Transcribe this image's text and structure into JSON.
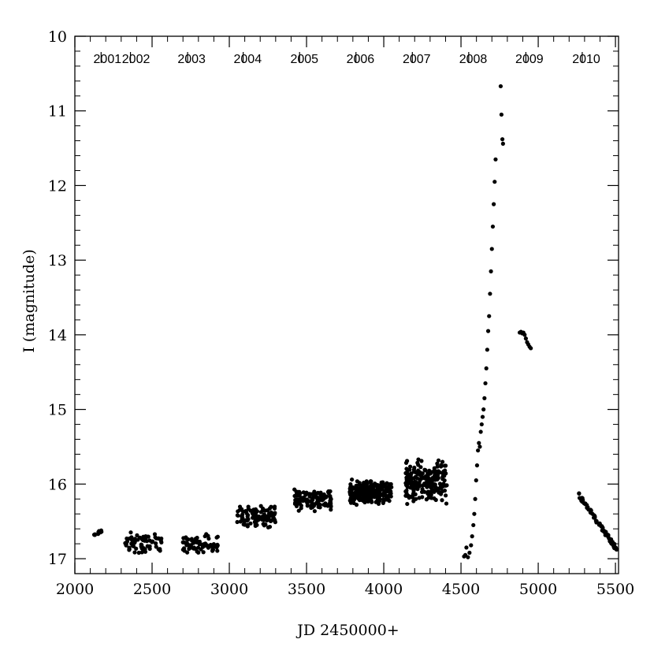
{
  "chart_data": {
    "type": "scatter",
    "title": "",
    "xlabel": "JD 2450000+",
    "ylabel": "I (magnitude)",
    "xlim": [
      2000,
      5520
    ],
    "ylim": [
      17.2,
      10
    ],
    "y_inverted": true,
    "grid": false,
    "x_ticks": [
      2000,
      2500,
      3000,
      3500,
      4000,
      4500,
      5000,
      5500
    ],
    "y_ticks": [
      10,
      11,
      12,
      13,
      14,
      15,
      16,
      17
    ],
    "x_tick_labels": [
      "2000",
      "2500",
      "3000",
      "3500",
      "4000",
      "4500",
      "5000",
      "5500"
    ],
    "y_tick_labels": [
      "10",
      "11",
      "12",
      "13",
      "14",
      "15",
      "16",
      "17"
    ],
    "year_markers": {
      "labels": [
        "2001",
        "2002",
        "2003",
        "2004",
        "2005",
        "2006",
        "2007",
        "2008",
        "2009",
        "2010"
      ],
      "label_x": [
        2120,
        2305,
        2665,
        3028,
        3395,
        3758,
        4122,
        4488,
        4852,
        5220
      ],
      "divider_x": [
        2170,
        2360,
        2730,
        3090,
        3455,
        3820,
        4185,
        4550,
        4920,
        5285
      ]
    },
    "seasons": [
      {
        "year": "2001",
        "x_range": [
          2115,
          2200
        ],
        "I_range": [
          16.56,
          16.76
        ]
      },
      {
        "year": "2002",
        "x_range": [
          2320,
          2570
        ],
        "I_range": [
          16.6,
          17.0
        ]
      },
      {
        "year": "2003",
        "x_range": [
          2700,
          2930
        ],
        "I_range": [
          16.63,
          17.0
        ]
      },
      {
        "year": "2004",
        "x_range": [
          3050,
          3300
        ],
        "I_range": [
          16.22,
          16.67
        ]
      },
      {
        "year": "2005",
        "x_range": [
          3420,
          3660
        ],
        "I_range": [
          16.0,
          16.45
        ]
      },
      {
        "year": "2006",
        "x_range": [
          3780,
          4050
        ],
        "I_range": [
          15.87,
          16.35
        ]
      },
      {
        "year": "2007",
        "x_range": [
          4140,
          4410
        ],
        "I_range": [
          15.55,
          16.37
        ]
      },
      {
        "year": "2010",
        "x_range": [
          5260,
          5510
        ],
        "I_range": [
          16.14,
          16.88
        ]
      }
    ],
    "rise_points": [
      {
        "x": 4520,
        "y": 16.97
      },
      {
        "x": 4528,
        "y": 16.95
      },
      {
        "x": 4535,
        "y": 16.85
      },
      {
        "x": 4545,
        "y": 16.98
      },
      {
        "x": 4555,
        "y": 16.92
      },
      {
        "x": 4565,
        "y": 16.82
      },
      {
        "x": 4572,
        "y": 16.7
      },
      {
        "x": 4580,
        "y": 16.55
      },
      {
        "x": 4586,
        "y": 16.4
      },
      {
        "x": 4592,
        "y": 16.2
      },
      {
        "x": 4598,
        "y": 15.95
      },
      {
        "x": 4604,
        "y": 15.75
      },
      {
        "x": 4610,
        "y": 15.55
      },
      {
        "x": 4616,
        "y": 15.45
      },
      {
        "x": 4622,
        "y": 15.5
      },
      {
        "x": 4628,
        "y": 15.3
      },
      {
        "x": 4634,
        "y": 15.2
      },
      {
        "x": 4640,
        "y": 15.1
      },
      {
        "x": 4646,
        "y": 15.0
      },
      {
        "x": 4652,
        "y": 14.85
      },
      {
        "x": 4658,
        "y": 14.65
      },
      {
        "x": 4664,
        "y": 14.45
      },
      {
        "x": 4670,
        "y": 14.2
      },
      {
        "x": 4676,
        "y": 13.95
      },
      {
        "x": 4682,
        "y": 13.75
      },
      {
        "x": 4688,
        "y": 13.45
      },
      {
        "x": 4694,
        "y": 13.15
      },
      {
        "x": 4700,
        "y": 12.85
      },
      {
        "x": 4706,
        "y": 12.55
      },
      {
        "x": 4712,
        "y": 12.25
      },
      {
        "x": 4718,
        "y": 11.95
      },
      {
        "x": 4724,
        "y": 11.65
      },
      {
        "x": 4757,
        "y": 10.67
      },
      {
        "x": 4762,
        "y": 11.05
      },
      {
        "x": 4768,
        "y": 11.38
      },
      {
        "x": 4772,
        "y": 11.44
      }
    ],
    "post_peak_points": [
      {
        "x": 4880,
        "y": 13.97
      },
      {
        "x": 4888,
        "y": 13.96
      },
      {
        "x": 4896,
        "y": 13.98
      },
      {
        "x": 4904,
        "y": 13.97
      },
      {
        "x": 4912,
        "y": 14.0
      },
      {
        "x": 4920,
        "y": 14.05
      },
      {
        "x": 4928,
        "y": 14.1
      },
      {
        "x": 4936,
        "y": 14.13
      },
      {
        "x": 4944,
        "y": 14.16
      },
      {
        "x": 4952,
        "y": 14.18
      }
    ]
  }
}
